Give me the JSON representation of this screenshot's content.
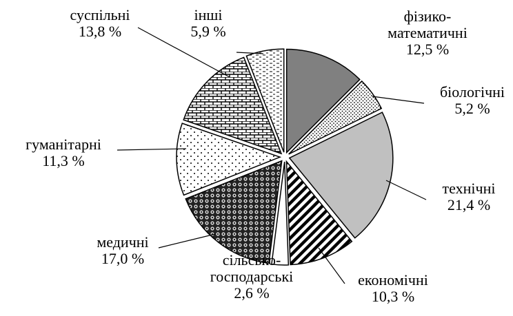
{
  "chart_data": {
    "type": "pie",
    "categories": [
      "фізико-\nматематичні",
      "біологічні",
      "технічні",
      "економічні",
      "сільсько-\nгосподарські",
      "медичні",
      "гуманітарні",
      "суспільні",
      "інші"
    ],
    "values": [
      12.5,
      5.2,
      21.4,
      10.3,
      2.6,
      17.0,
      11.3,
      13.8,
      5.9
    ],
    "value_labels": [
      "12,5 %",
      "5,2 %",
      "21,4 %",
      "10,3 %",
      "2,6 %",
      "17,0 %",
      "11,3 %",
      "13,8 %",
      "5,9 %"
    ]
  }
}
